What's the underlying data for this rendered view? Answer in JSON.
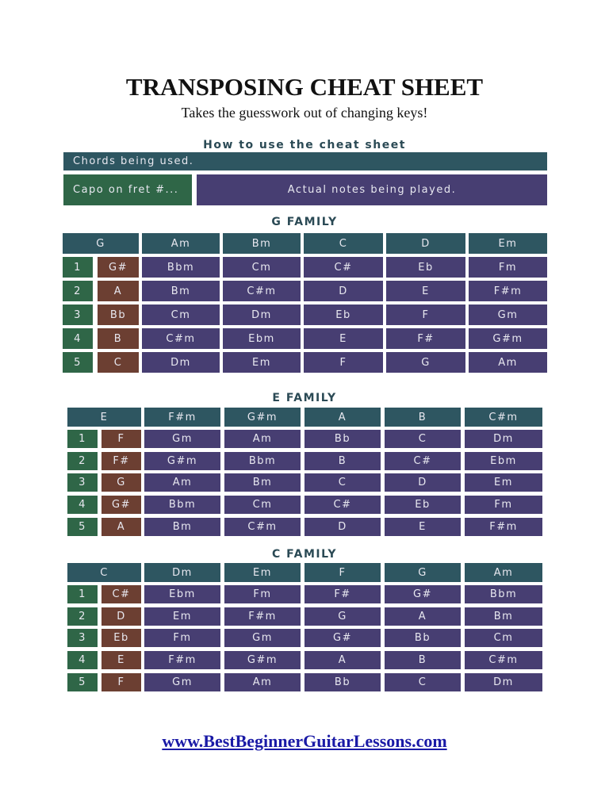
{
  "title": "TRANSPOSING CHEAT SHEET",
  "subtitle": "Takes the guesswork out of changing keys!",
  "colors": {
    "header": "#2e5661",
    "capo": "#2f6647",
    "capo_chord": "#6c3f32",
    "actual": "#473e72",
    "heading": "#2b4a55"
  },
  "legend": {
    "heading": "How to use the cheat sheet",
    "chords_used": "Chords being used.",
    "capo": "Capo on fret #...",
    "actual": "Actual notes being played."
  },
  "families": [
    {
      "name": "G FAMILY",
      "header": [
        "G",
        "Am",
        "Bm",
        "C",
        "D",
        "Em"
      ],
      "rows": [
        {
          "fret": "1",
          "chords": [
            "G#",
            "Bbm",
            "Cm",
            "C#",
            "Eb",
            "Fm"
          ]
        },
        {
          "fret": "2",
          "chords": [
            "A",
            "Bm",
            "C#m",
            "D",
            "E",
            "F#m"
          ]
        },
        {
          "fret": "3",
          "chords": [
            "Bb",
            "Cm",
            "Dm",
            "Eb",
            "F",
            "Gm"
          ]
        },
        {
          "fret": "4",
          "chords": [
            "B",
            "C#m",
            "Ebm",
            "E",
            "F#",
            "G#m"
          ]
        },
        {
          "fret": "5",
          "chords": [
            "C",
            "Dm",
            "Em",
            "F",
            "G",
            "Am"
          ]
        }
      ]
    },
    {
      "name": "E FAMILY",
      "header": [
        "E",
        "F#m",
        "G#m",
        "A",
        "B",
        "C#m"
      ],
      "rows": [
        {
          "fret": "1",
          "chords": [
            "F",
            "Gm",
            "Am",
            "Bb",
            "C",
            "Dm"
          ]
        },
        {
          "fret": "2",
          "chords": [
            "F#",
            "G#m",
            "Bbm",
            "B",
            "C#",
            "Ebm"
          ]
        },
        {
          "fret": "3",
          "chords": [
            "G",
            "Am",
            "Bm",
            "C",
            "D",
            "Em"
          ]
        },
        {
          "fret": "4",
          "chords": [
            "G#",
            "Bbm",
            "Cm",
            "C#",
            "Eb",
            "Fm"
          ]
        },
        {
          "fret": "5",
          "chords": [
            "A",
            "Bm",
            "C#m",
            "D",
            "E",
            "F#m"
          ]
        }
      ]
    },
    {
      "name": "C FAMILY",
      "header": [
        "C",
        "Dm",
        "Em",
        "F",
        "G",
        "Am"
      ],
      "rows": [
        {
          "fret": "1",
          "chords": [
            "C#",
            "Ebm",
            "Fm",
            "F#",
            "G#",
            "Bbm"
          ]
        },
        {
          "fret": "2",
          "chords": [
            "D",
            "Em",
            "F#m",
            "G",
            "A",
            "Bm"
          ]
        },
        {
          "fret": "3",
          "chords": [
            "Eb",
            "Fm",
            "Gm",
            "G#",
            "Bb",
            "Cm"
          ]
        },
        {
          "fret": "4",
          "chords": [
            "E",
            "F#m",
            "G#m",
            "A",
            "B",
            "C#m"
          ]
        },
        {
          "fret": "5",
          "chords": [
            "F",
            "Gm",
            "Am",
            "Bb",
            "C",
            "Dm"
          ]
        }
      ]
    }
  ],
  "footer": {
    "link": "www.BestBeginnerGuitarLessons.com"
  }
}
